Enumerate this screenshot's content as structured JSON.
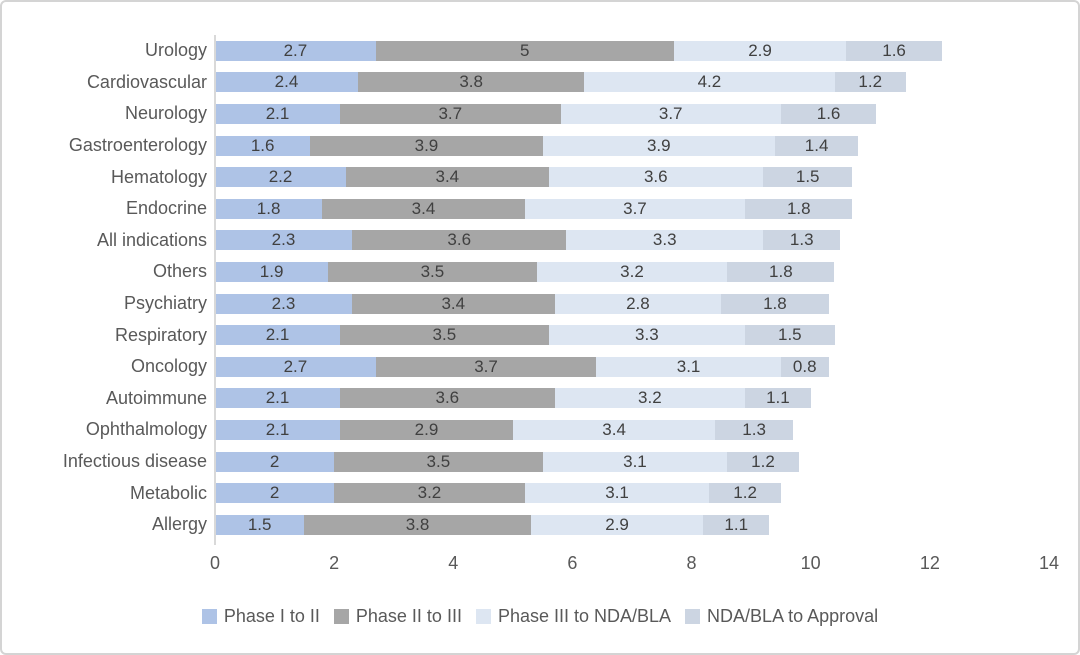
{
  "chart_data": {
    "type": "bar",
    "stacked": true,
    "orientation": "horizontal",
    "title": "",
    "xlabel": "",
    "ylabel": "",
    "xlim": [
      0,
      14
    ],
    "x_ticks": [
      0,
      2,
      4,
      6,
      8,
      10,
      12,
      14
    ],
    "grid": false,
    "legend_position": "bottom",
    "categories": [
      "Urology",
      "Cardiovascular",
      "Neurology",
      "Gastroenterology",
      "Hematology",
      "Endocrine",
      "All indications",
      "Others",
      "Psychiatry",
      "Respiratory",
      "Oncology",
      "Autoimmune",
      "Ophthalmology",
      "Infectious disease",
      "Metabolic",
      "Allergy"
    ],
    "series": [
      {
        "name": "Phase I to II",
        "color": "#aec3e6",
        "values": [
          2.7,
          2.4,
          2.1,
          1.6,
          2.2,
          1.8,
          2.3,
          1.9,
          2.3,
          2.1,
          2.7,
          2.1,
          2.1,
          2,
          2,
          1.5
        ]
      },
      {
        "name": "Phase II to III",
        "color": "#a6a6a6",
        "values": [
          5,
          3.8,
          3.7,
          3.9,
          3.4,
          3.4,
          3.6,
          3.5,
          3.4,
          3.5,
          3.7,
          3.6,
          2.9,
          3.5,
          3.2,
          3.8
        ]
      },
      {
        "name": "Phase III to NDA/BLA",
        "color": "#dde6f2",
        "values": [
          2.9,
          4.2,
          3.7,
          3.9,
          3.6,
          3.7,
          3.3,
          3.2,
          2.8,
          3.3,
          3.1,
          3.2,
          3.4,
          3.1,
          3.1,
          2.9
        ]
      },
      {
        "name": "NDA/BLA to Approval",
        "color": "#ccd5e2",
        "values": [
          1.6,
          1.2,
          1.6,
          1.4,
          1.5,
          1.8,
          1.3,
          1.8,
          1.8,
          1.5,
          0.8,
          1.1,
          1.3,
          1.2,
          1.2,
          1.1
        ]
      }
    ]
  },
  "style": {
    "axis_line_color": "#d9d9d9",
    "category_label_color": "#595959",
    "tick_label_color": "#595959",
    "value_label_color": "#404040",
    "legend_text_color": "#595959",
    "card_border_color": "#d4d4d4",
    "background_color": "#ffffff"
  }
}
